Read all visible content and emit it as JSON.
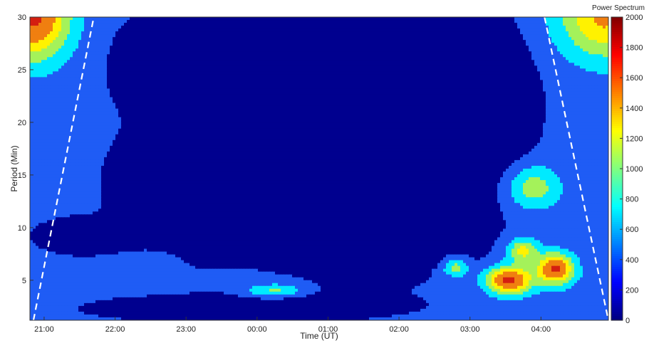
{
  "chart_data": {
    "type": "heatmap",
    "title": "",
    "xlabel": "Time (UT)",
    "ylabel": "Period (Min)",
    "x_ticks": [
      "21:00",
      "22:00",
      "23:00",
      "00:00",
      "01:00",
      "02:00",
      "03:00",
      "04:00"
    ],
    "y_ticks": [
      5,
      10,
      15,
      20,
      25,
      30
    ],
    "ylim": [
      1.2,
      30
    ],
    "xlim_hours": [
      20.8,
      28.95
    ],
    "colorbar": {
      "title": "Power Spectrum",
      "range": [
        0,
        2000
      ],
      "ticks": [
        0,
        200,
        400,
        600,
        800,
        1000,
        1200,
        1400,
        1600,
        1800,
        2000
      ],
      "colormap": "jet"
    },
    "cone_of_influence": {
      "style": "dashed",
      "color": "#ffffff",
      "left": [
        {
          "x": 20.85,
          "y": 1.2
        },
        {
          "x": 21.7,
          "y": 30
        }
      ],
      "right": [
        {
          "x": 28.05,
          "y": 30
        },
        {
          "x": 28.95,
          "y": 1.2
        }
      ]
    },
    "levels": [
      {
        "min": 0,
        "max": 250,
        "color": "#00008f"
      },
      {
        "min": 250,
        "max": 500,
        "color": "#1f5cf5"
      },
      {
        "min": 500,
        "max": 800,
        "color": "#00eaff"
      },
      {
        "min": 800,
        "max": 1100,
        "color": "#a4f25a"
      },
      {
        "min": 1100,
        "max": 1400,
        "color": "#fff200"
      },
      {
        "min": 1400,
        "max": 1800,
        "color": "#f07f10"
      },
      {
        "min": 1800,
        "max": 2000,
        "color": "#d41f10"
      }
    ],
    "power_peaks": [
      {
        "x": 20.85,
        "y": 30,
        "power": 1550,
        "sx": 0.35,
        "sy": 2.8
      },
      {
        "x": 28.9,
        "y": 30,
        "power": 1150,
        "sx": 0.45,
        "sy": 2.8
      },
      {
        "x": 27.55,
        "y": 5.0,
        "power": 1600,
        "sx": 0.22,
        "sy": 0.9
      },
      {
        "x": 28.2,
        "y": 6.1,
        "power": 1550,
        "sx": 0.18,
        "sy": 1.0
      },
      {
        "x": 27.75,
        "y": 7.8,
        "power": 900,
        "sx": 0.15,
        "sy": 0.8
      },
      {
        "x": 27.9,
        "y": 13.8,
        "power": 680,
        "sx": 0.25,
        "sy": 1.4
      },
      {
        "x": 26.8,
        "y": 6.2,
        "power": 700,
        "sx": 0.12,
        "sy": 0.6
      },
      {
        "x": 24.25,
        "y": 4.0,
        "power": 600,
        "sx": 0.28,
        "sy": 0.45
      }
    ]
  }
}
